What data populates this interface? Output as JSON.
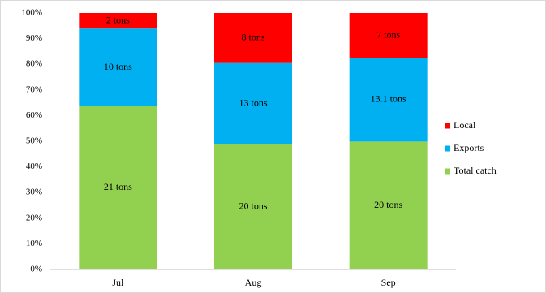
{
  "chart_data": {
    "type": "bar100",
    "categories": [
      "Jul",
      "Aug",
      "Sep"
    ],
    "series": [
      {
        "name": "Total catch",
        "color": "#92d050",
        "values": [
          21,
          20,
          20
        ],
        "value_labels": [
          "21 tons",
          "20 tons",
          "20 tons"
        ]
      },
      {
        "name": "Exports",
        "color": "#00b0f0",
        "values": [
          10,
          13,
          13.1
        ],
        "value_labels": [
          "10 tons",
          "13 tons",
          "13.1 tons"
        ]
      },
      {
        "name": "Local",
        "color": "#ff0000",
        "values": [
          2,
          8,
          7
        ],
        "value_labels": [
          "2 tons",
          "8 tons",
          "7 tons"
        ]
      }
    ],
    "ylim": [
      0,
      100
    ],
    "yticks": [
      {
        "value": 0,
        "label": "0%"
      },
      {
        "value": 10,
        "label": "10%"
      },
      {
        "value": 20,
        "label": "20%"
      },
      {
        "value": 30,
        "label": "30%"
      },
      {
        "value": 40,
        "label": "40%"
      },
      {
        "value": 50,
        "label": "50%"
      },
      {
        "value": 60,
        "label": "60%"
      },
      {
        "value": 70,
        "label": "70%"
      },
      {
        "value": 80,
        "label": "80%"
      },
      {
        "value": 90,
        "label": "90%"
      },
      {
        "value": 100,
        "label": "100%"
      }
    ],
    "legend": "right",
    "grid": false
  }
}
